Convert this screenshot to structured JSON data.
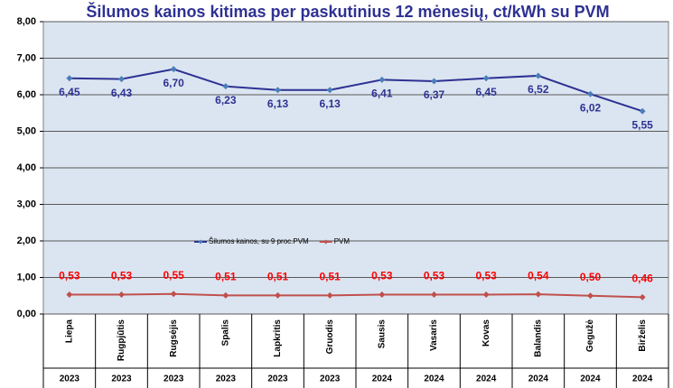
{
  "chart_data": {
    "type": "line",
    "title": "Šilumos kainos kitimas per paskutinius 12 mėnesių, ct/kWh su PVM",
    "categories": [
      "Liepa",
      "Rugpjūtis",
      "Rugsėjis",
      "Spalis",
      "Lapkritis",
      "Gruodis",
      "Sausis",
      "Vasaris",
      "Kovas",
      "Balandis",
      "Gegužė",
      "Birželis"
    ],
    "category_groups": [
      "2023",
      "2023",
      "2023",
      "2023",
      "2023",
      "2023",
      "2024",
      "2024",
      "2024",
      "2024",
      "2024",
      "2024"
    ],
    "series": [
      {
        "name": "Šilumos kainos, su 9 proc.PVM",
        "color": "#2e3192",
        "marker_color": "#4a7ebb",
        "values": [
          6.45,
          6.43,
          6.7,
          6.23,
          6.13,
          6.13,
          6.41,
          6.37,
          6.45,
          6.52,
          6.02,
          5.55
        ],
        "value_labels": [
          "6,45",
          "6,43",
          "6,70",
          "6,23",
          "6,13",
          "6,13",
          "6,41",
          "6,37",
          "6,45",
          "6,52",
          "6,02",
          "5,55"
        ]
      },
      {
        "name": "PVM",
        "color": "#c0504d",
        "label_color": "#ff0000",
        "values": [
          0.53,
          0.53,
          0.55,
          0.51,
          0.51,
          0.51,
          0.53,
          0.53,
          0.53,
          0.54,
          0.5,
          0.46
        ],
        "value_labels": [
          "0,53",
          "0,53",
          "0,55",
          "0,51",
          "0,51",
          "0,51",
          "0,53",
          "0,53",
          "0,53",
          "0,54",
          "0,50",
          "0,46"
        ]
      }
    ],
    "ylim": [
      0,
      8
    ],
    "yticks": [
      {
        "value": 0,
        "label": "0,00"
      },
      {
        "value": 1,
        "label": "1,00"
      },
      {
        "value": 2,
        "label": "2,00"
      },
      {
        "value": 3,
        "label": "3,00"
      },
      {
        "value": 4,
        "label": "4,00"
      },
      {
        "value": 5,
        "label": "5,00"
      },
      {
        "value": 6,
        "label": "6,00"
      },
      {
        "value": 7,
        "label": "7,00"
      },
      {
        "value": 8,
        "label": "8,00"
      }
    ],
    "grid": true,
    "legend": "center",
    "background": "#dbe5f1"
  }
}
